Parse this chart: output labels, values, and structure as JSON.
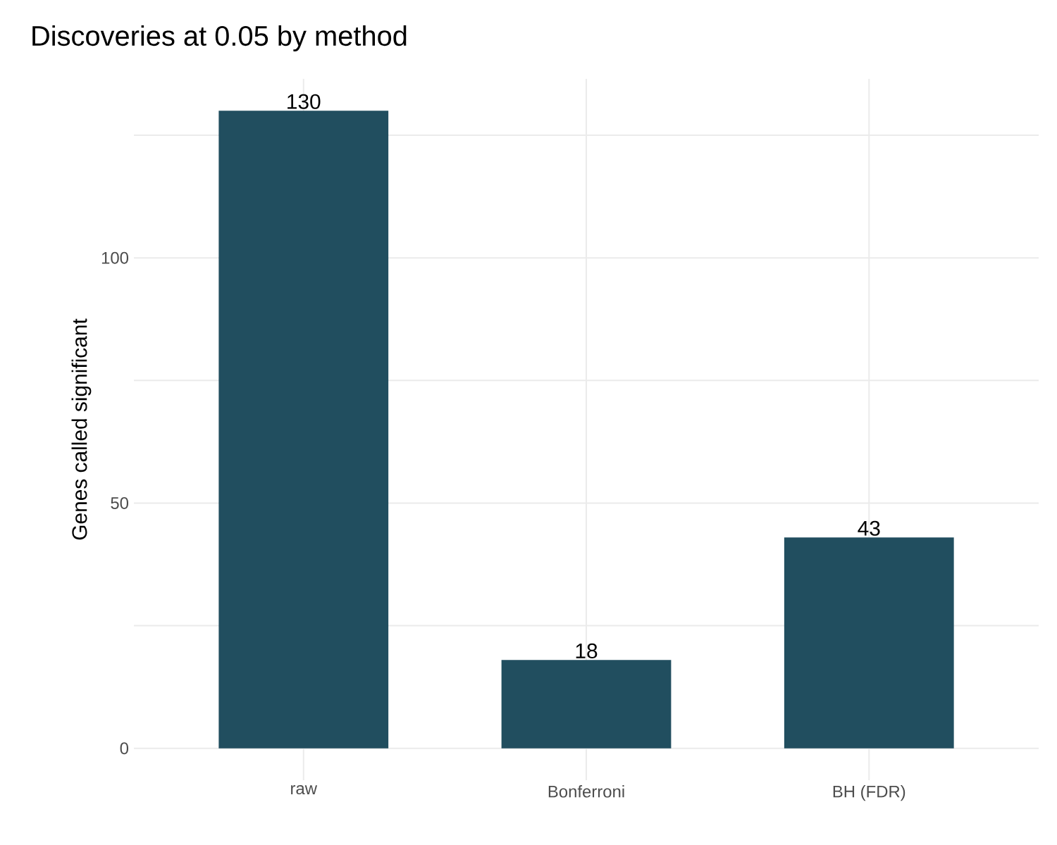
{
  "chart_data": {
    "type": "bar",
    "title": "Discoveries at 0.05 by method",
    "ylabel": "Genes called significant",
    "categories": [
      "raw",
      "Bonferroni",
      "BH (FDR)"
    ],
    "values": [
      130,
      18,
      43
    ],
    "color": "#214e5f",
    "ylim": [
      -6.5,
      136.5
    ],
    "yticks": [
      0,
      {
        "value": 25,
        "label": null
      },
      50,
      {
        "value": 75,
        "label": null
      },
      100,
      {
        "value": 125,
        "label": null
      }
    ],
    "grid": true,
    "data_labels": true
  }
}
